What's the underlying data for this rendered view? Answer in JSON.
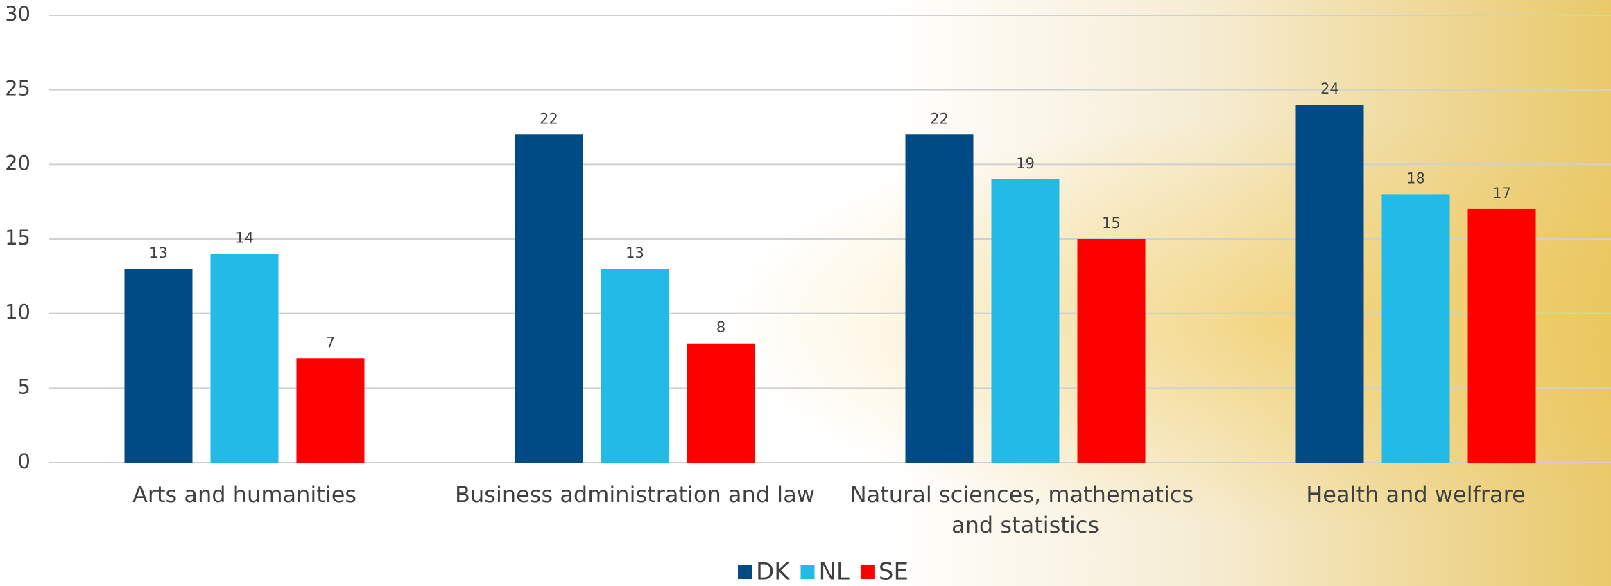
{
  "chart_data": {
    "type": "bar",
    "categories": [
      "Arts and humanities",
      "Business administration and law",
      "Natural sciences, mathematics and statistics",
      "Health and welfrare"
    ],
    "series": [
      {
        "name": "DK",
        "color": "#004a86",
        "values": [
          13,
          22,
          22,
          24
        ]
      },
      {
        "name": "NL",
        "color": "#22bbe8",
        "values": [
          14,
          13,
          19,
          18
        ]
      },
      {
        "name": "SE",
        "color": "#ff0000",
        "values": [
          7,
          8,
          15,
          17
        ]
      }
    ],
    "ylim": [
      0,
      30
    ],
    "yticks": [
      0,
      5,
      10,
      15,
      20,
      25,
      30
    ],
    "grid": true,
    "legend": "bottom"
  }
}
